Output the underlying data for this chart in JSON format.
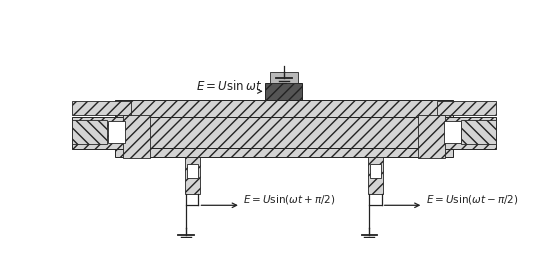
{
  "figsize": [
    5.54,
    2.67
  ],
  "dpi": 100,
  "white": "#ffffff",
  "dark": "#222222",
  "hatch_gray": "#d4d4d4",
  "mid_gray": "#b8b8b8",
  "dark_gray": "#888888",
  "black": "#000000",
  "label_top": "$E=U\\sin\\omega t$",
  "label_left": "$E=U\\sin(\\omega t+\\pi/2)$",
  "label_right": "$E=U\\sin(\\omega t-\\pi/2)$"
}
